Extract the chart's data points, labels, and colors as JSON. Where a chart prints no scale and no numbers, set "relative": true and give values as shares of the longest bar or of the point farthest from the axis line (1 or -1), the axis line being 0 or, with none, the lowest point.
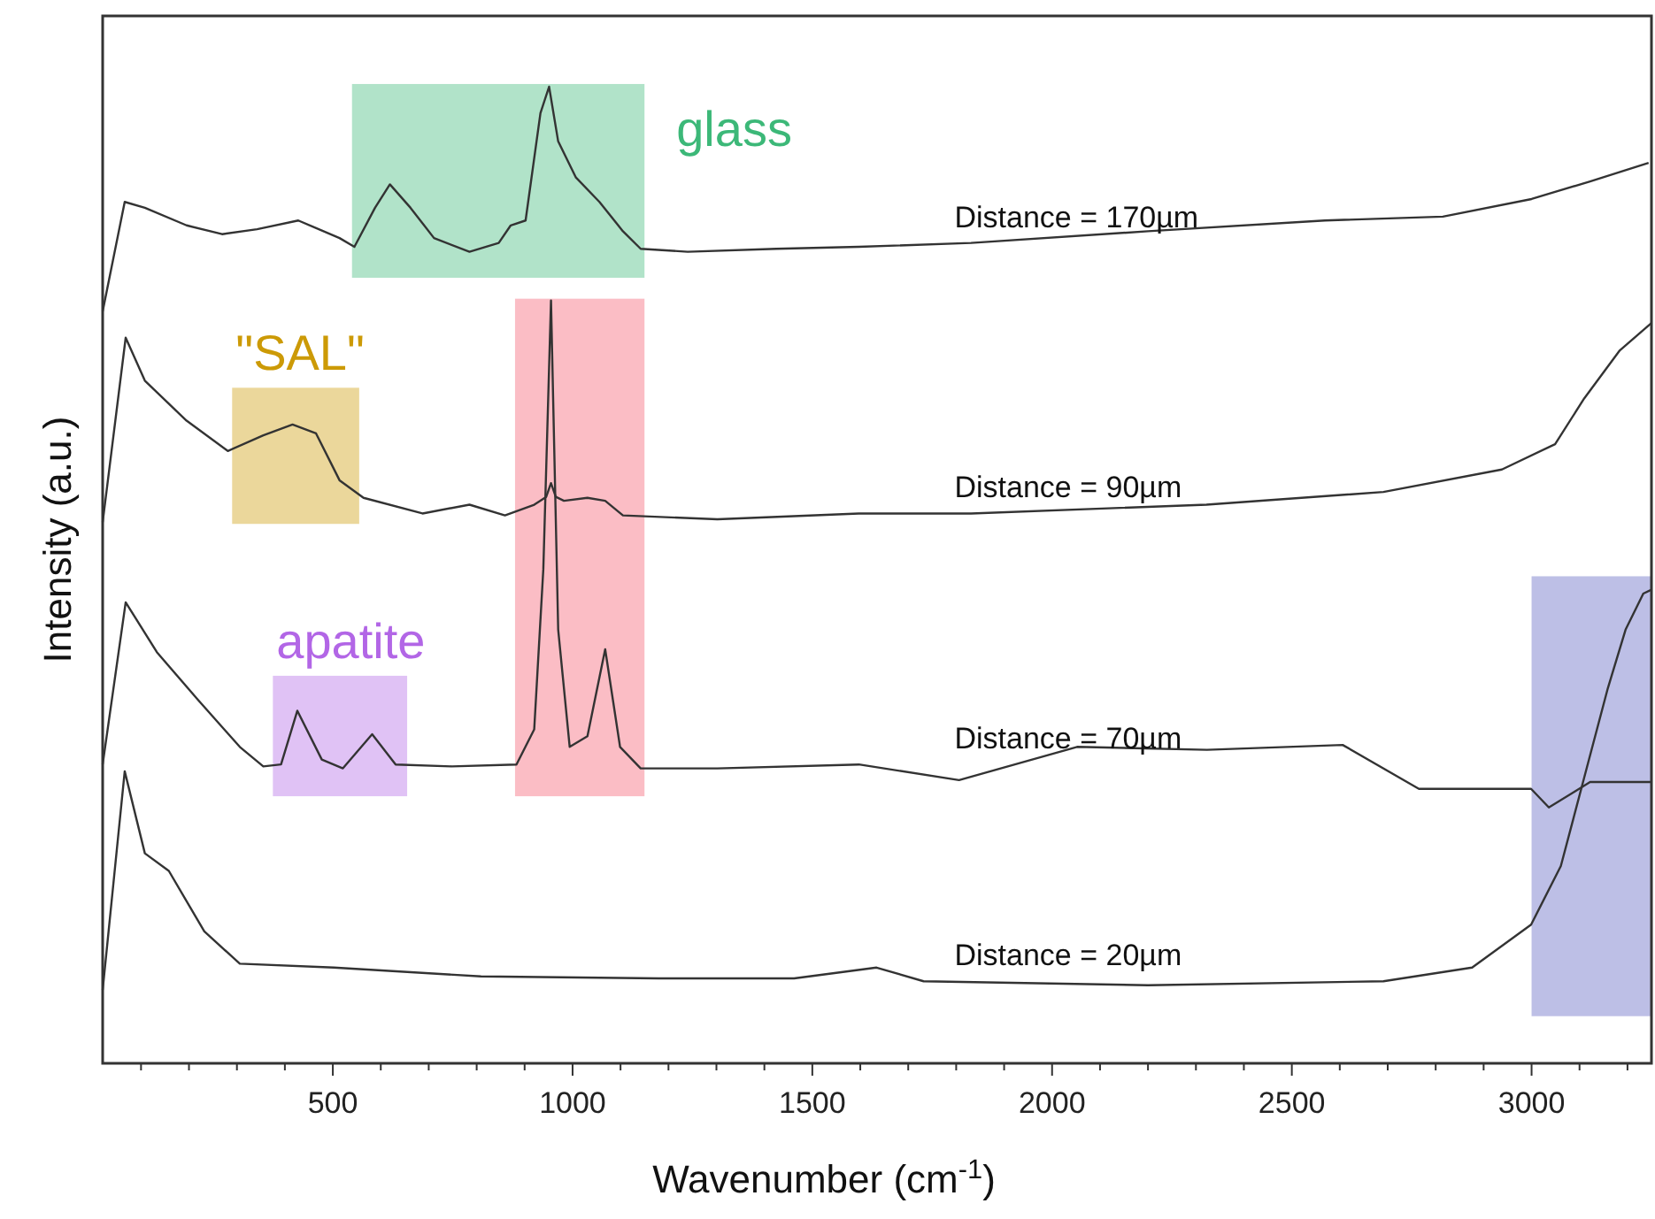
{
  "chart_data": {
    "type": "line",
    "relative": true,
    "xlabel": "Wavenumber (cm$^{-1}$)",
    "ylabel": "Intensity (a.u.)",
    "xlim": [
      20,
      3250
    ],
    "xticks": [
      {
        "value": 100,
        "label": null
      },
      {
        "value": 200,
        "label": null
      },
      {
        "value": 300,
        "label": null
      },
      {
        "value": 400,
        "label": null
      },
      500,
      {
        "value": 600,
        "label": null
      },
      {
        "value": 700,
        "label": null
      },
      {
        "value": 800,
        "label": null
      },
      {
        "value": 900,
        "label": null
      },
      1000,
      {
        "value": 1100,
        "label": null
      },
      {
        "value": 1200,
        "label": null
      },
      {
        "value": 1300,
        "label": null
      },
      {
        "value": 1400,
        "label": null
      },
      1500,
      {
        "value": 1600,
        "label": null
      },
      {
        "value": 1700,
        "label": null
      },
      {
        "value": 1800,
        "label": null
      },
      {
        "value": 1900,
        "label": null
      },
      2000,
      {
        "value": 2100,
        "label": null
      },
      {
        "value": 2200,
        "label": null
      },
      {
        "value": 2300,
        "label": null
      },
      {
        "value": 2400,
        "label": null
      },
      2500,
      {
        "value": 2600,
        "label": null
      },
      {
        "value": 2700,
        "label": null
      },
      {
        "value": 2800,
        "label": null
      },
      {
        "value": 2900,
        "label": null
      },
      3000,
      {
        "value": 3100,
        "label": null
      },
      {
        "value": 3200,
        "label": null
      }
    ],
    "grid": false,
    "marker": "none",
    "line_style": "solid",
    "series": [
      {
        "name": "Distance = 170µm",
        "color": "#333333",
        "x": [
          20,
          66,
          108,
          195,
          269,
          342,
          428,
          514,
          545,
          588,
          619,
          662,
          711,
          785,
          846,
          871,
          902,
          933,
          951,
          970,
          1007,
          1056,
          1105,
          1142,
          1240,
          1425,
          1597,
          1831,
          2200,
          2569,
          2815,
          3000,
          3122,
          3244
        ],
        "values": [
          0.77,
          0.882,
          0.876,
          0.858,
          0.849,
          0.854,
          0.863,
          0.845,
          0.836,
          0.876,
          0.9,
          0.876,
          0.845,
          0.831,
          0.84,
          0.858,
          0.863,
          0.973,
          1.0,
          0.944,
          0.907,
          0.882,
          0.852,
          0.834,
          0.831,
          0.834,
          0.836,
          0.84,
          0.852,
          0.863,
          0.867,
          0.885,
          0.903,
          0.922
        ]
      },
      {
        "name": "Distance = 90µm",
        "color": "#333333",
        "x": [
          20,
          68,
          108,
          195,
          281,
          355,
          416,
          465,
          514,
          564,
          687,
          785,
          859,
          920,
          945,
          955,
          965,
          982,
          1031,
          1068,
          1105,
          1302,
          1597,
          1831,
          2322,
          2691,
          2938,
          3049,
          3110,
          3184,
          3250
        ],
        "values": [
          0.554,
          0.743,
          0.699,
          0.658,
          0.627,
          0.643,
          0.654,
          0.645,
          0.597,
          0.579,
          0.563,
          0.572,
          0.561,
          0.572,
          0.58,
          0.594,
          0.58,
          0.576,
          0.579,
          0.576,
          0.561,
          0.557,
          0.563,
          0.563,
          0.572,
          0.585,
          0.608,
          0.634,
          0.681,
          0.73,
          0.758
        ]
      },
      {
        "name": "Distance = 70µm",
        "color": "#333333",
        "x": [
          20,
          68,
          133,
          219,
          306,
          355,
          392,
          426,
          477,
          521,
          582,
          631,
          748,
          883,
          920,
          939,
          955,
          970,
          994,
          1031,
          1068,
          1099,
          1142,
          1302,
          1597,
          1806,
          2052,
          2323,
          2606,
          2765,
          2999,
          3036,
          3122,
          3250
        ],
        "values": [
          0.306,
          0.472,
          0.421,
          0.372,
          0.324,
          0.304,
          0.306,
          0.361,
          0.311,
          0.302,
          0.337,
          0.306,
          0.304,
          0.306,
          0.342,
          0.506,
          0.781,
          0.444,
          0.324,
          0.335,
          0.424,
          0.324,
          0.302,
          0.302,
          0.306,
          0.29,
          0.324,
          0.321,
          0.326,
          0.281,
          0.281,
          0.262,
          0.288,
          0.288
        ]
      },
      {
        "name": "Distance = 20µm",
        "color": "#333333",
        "x": [
          20,
          66,
          108,
          158,
          232,
          306,
          502,
          809,
          1179,
          1462,
          1634,
          1732,
          2200,
          2691,
          2876,
          2999,
          3061,
          3110,
          3159,
          3196,
          3233,
          3250
        ],
        "values": [
          0.075,
          0.299,
          0.215,
          0.197,
          0.135,
          0.102,
          0.098,
          0.089,
          0.087,
          0.087,
          0.098,
          0.084,
          0.08,
          0.084,
          0.098,
          0.142,
          0.202,
          0.293,
          0.384,
          0.444,
          0.481,
          0.485
        ]
      }
    ],
    "bands": [
      {
        "axis": "x",
        "from": 540,
        "to": 1150,
        "label": "glass",
        "color": "#3cb878"
      },
      {
        "axis": "x",
        "from": 290,
        "to": 555,
        "label": "\"SAL\"",
        "color": "#cc9a06"
      },
      {
        "axis": "x",
        "from": 880,
        "to": 1150,
        "color": "#f55a6e"
      },
      {
        "axis": "x",
        "from": 375,
        "to": 655,
        "label": "apatite",
        "color": "#b266e6"
      },
      {
        "axis": "x",
        "from": 3000,
        "to": 3250,
        "color": "#5a5ec0"
      }
    ]
  }
}
